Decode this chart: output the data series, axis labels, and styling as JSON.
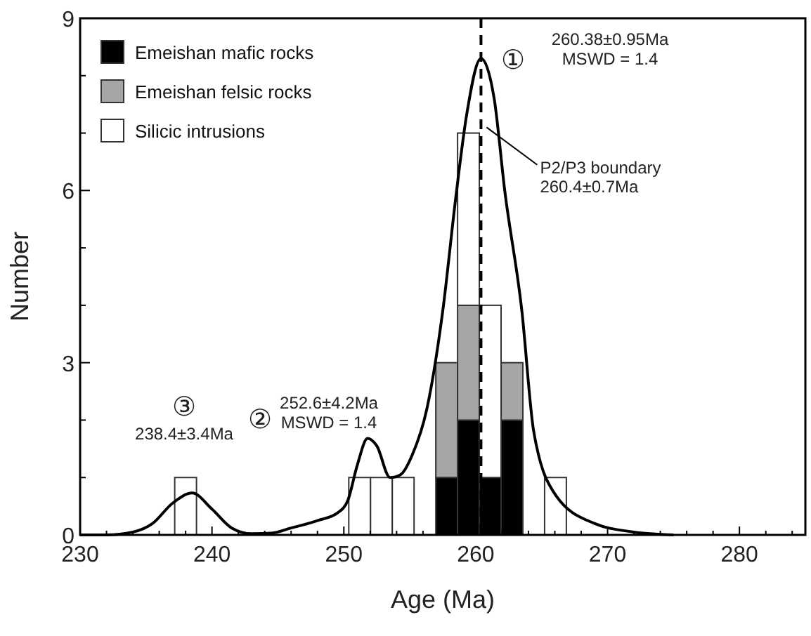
{
  "chart_data": {
    "type": "bar",
    "xlabel": "Age (Ma)",
    "ylabel": "Number",
    "stacked": true,
    "x": [
      238.0,
      251.2,
      252.85,
      254.5,
      257.8,
      259.45,
      261.1,
      262.75,
      266.05
    ],
    "series": [
      {
        "name": "Emeishan mafic rocks",
        "color": "#000000",
        "values": [
          0,
          0,
          0,
          0,
          1,
          2,
          1,
          2,
          0
        ]
      },
      {
        "name": "Emeishan felsic rocks",
        "color": "#a6a6a6",
        "values": [
          0,
          0,
          0,
          0,
          2,
          2,
          0,
          1,
          0
        ]
      },
      {
        "name": "Silicic intrusions",
        "color": "#ffffff",
        "values": [
          1,
          1,
          1,
          1,
          0,
          3,
          3,
          0,
          1
        ]
      },
      {
        "type": "line",
        "color": "#000000",
        "x": [
          230,
          232,
          234,
          235.5,
          237,
          238.5,
          240,
          241.5,
          243,
          244.5,
          246,
          248,
          249.5,
          250.3,
          251,
          251.8,
          252.5,
          253.5,
          254.3,
          255.2,
          256.3,
          257.5,
          258.5,
          259.3,
          260.4,
          261.4,
          262.2,
          263.5,
          264.4,
          266.1,
          269,
          272,
          275
        ],
        "values": [
          0,
          0,
          0.05,
          0.2,
          0.55,
          0.73,
          0.45,
          0.12,
          0.02,
          0.03,
          0.12,
          0.25,
          0.38,
          0.6,
          1.2,
          1.68,
          1.55,
          1.0,
          1.05,
          1.4,
          2.2,
          3.9,
          5.9,
          7.3,
          8.3,
          7.6,
          6.0,
          3.9,
          1.8,
          0.68,
          0.2,
          0.05,
          0
        ]
      }
    ],
    "xlim": [
      230,
      285
    ],
    "ylim": [
      0,
      9
    ],
    "xticks": [
      230,
      {
        "value": 232,
        "label": null
      },
      {
        "value": 234,
        "label": null
      },
      {
        "value": 236,
        "label": null
      },
      {
        "value": 238,
        "label": null
      },
      240,
      {
        "value": 242,
        "label": null
      },
      {
        "value": 244,
        "label": null
      },
      {
        "value": 246,
        "label": null
      },
      {
        "value": 248,
        "label": null
      },
      250,
      {
        "value": 252,
        "label": null
      },
      {
        "value": 254,
        "label": null
      },
      {
        "value": 256,
        "label": null
      },
      {
        "value": 258,
        "label": null
      },
      260,
      {
        "value": 262,
        "label": null
      },
      {
        "value": 264,
        "label": null
      },
      {
        "value": 266,
        "label": null
      },
      {
        "value": 268,
        "label": null
      },
      270,
      {
        "value": 272,
        "label": null
      },
      {
        "value": 274,
        "label": null
      },
      {
        "value": 276,
        "label": null
      },
      {
        "value": 278,
        "label": null
      },
      280,
      {
        "value": 282,
        "label": null
      },
      {
        "value": 284,
        "label": null
      }
    ],
    "yticks": [
      0,
      {
        "value": 1,
        "label": null
      },
      {
        "value": 2,
        "label": null
      },
      3,
      {
        "value": 4,
        "label": null
      },
      {
        "value": 5,
        "label": null
      },
      6,
      {
        "value": 7,
        "label": null
      },
      {
        "value": 8,
        "label": null
      },
      9
    ],
    "ref_lines": [
      {
        "axis": "x",
        "value": 260.4,
        "label": "P2/P3 boundary\n260.4±0.7Ma",
        "line_style": "dashed",
        "color": "#000000"
      }
    ],
    "annotations": [
      "①",
      "260.38±0.95Ma\nMSWD = 1.4",
      "②",
      "252.6±4.2Ma\nMSWD = 1.4",
      "③",
      "238.4±3.4Ma"
    ],
    "legend": "top left"
  }
}
